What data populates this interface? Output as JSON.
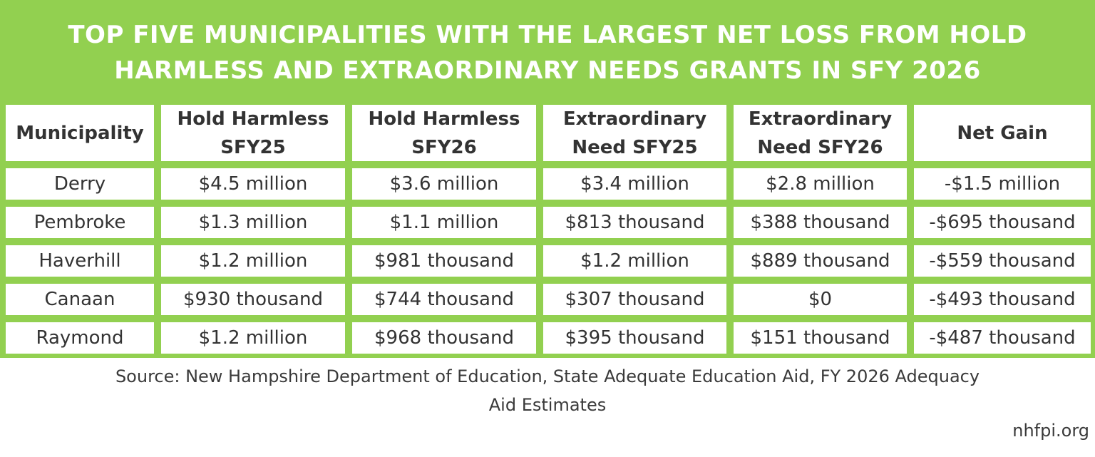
{
  "title_line1": "TOP FIVE MUNICIPALITIES WITH THE LARGEST NET LOSS FROM HOLD",
  "title_line2": "HARMLESS AND EXTRAORDINARY NEEDS GRANTS IN SFY 2026",
  "source_line1": "Source: New Hampshire Department of Education, State Adequate Education Aid, FY 2026 Adequacy",
  "source_line2": "Aid Estimates",
  "brand": "nhfpi.org",
  "colors": {
    "panel_green": "#92d050",
    "cell_bg": "#ffffff",
    "text": "#333333"
  },
  "chart_data": {
    "type": "table",
    "columns": [
      {
        "line1": "Municipality",
        "line2": ""
      },
      {
        "line1": "Hold Harmless",
        "line2": "SFY25"
      },
      {
        "line1": "Hold Harmless",
        "line2": "SFY26"
      },
      {
        "line1": "Extraordinary",
        "line2": "Need SFY25"
      },
      {
        "line1": "Extraordinary",
        "line2": "Need SFY26"
      },
      {
        "line1": "Net Gain",
        "line2": ""
      }
    ],
    "rows": [
      [
        "Derry",
        "$4.5 million",
        "$3.6 million",
        "$3.4 million",
        "$2.8 million",
        "-$1.5 million"
      ],
      [
        "Pembroke",
        "$1.3 million",
        "$1.1 million",
        "$813 thousand",
        "$388 thousand",
        "-$695 thousand"
      ],
      [
        "Haverhill",
        "$1.2 million",
        "$981 thousand",
        "$1.2 million",
        "$889 thousand",
        "-$559 thousand"
      ],
      [
        "Canaan",
        "$930 thousand",
        "$744 thousand",
        "$307 thousand",
        "$0",
        "-$493 thousand"
      ],
      [
        "Raymond",
        "$1.2 million",
        "$968 thousand",
        "$395 thousand",
        "$151 thousand",
        "-$487 thousand"
      ]
    ]
  }
}
